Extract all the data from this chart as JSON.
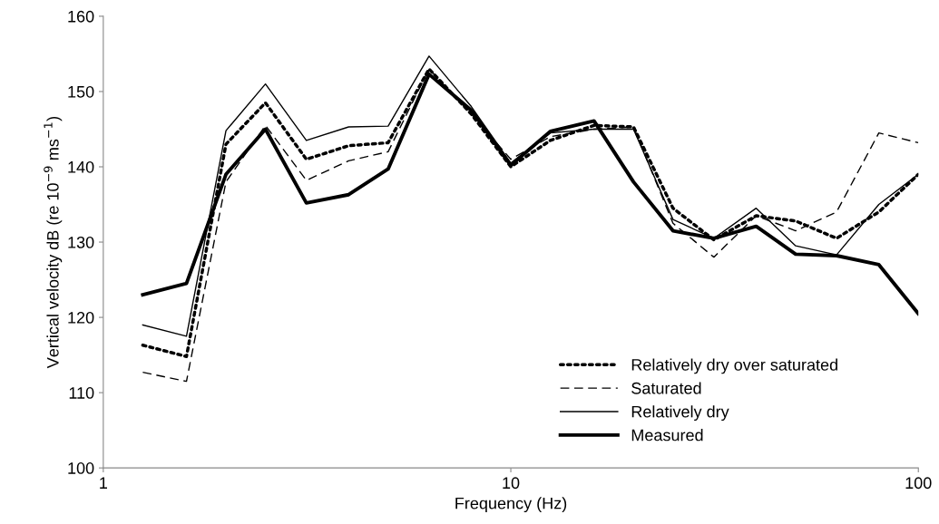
{
  "chart_data": {
    "type": "line",
    "xlabel": "Frequency (Hz)",
    "ylabel": "Vertical velocity dB (re 10$^{−9}$ ms$^{−1}$)",
    "log": "x",
    "xlim": [
      1,
      100
    ],
    "xticks": [
      1,
      10,
      100
    ],
    "ylim": [
      100,
      160
    ],
    "yticks": [
      100,
      110,
      120,
      130,
      140,
      150,
      160
    ],
    "grid": false,
    "legend": "bottom right",
    "marker": "none",
    "x": [
      1.25,
      1.6,
      2,
      2.5,
      3.15,
      4,
      5,
      6.3,
      8,
      10,
      12.5,
      16,
      20,
      25,
      31.5,
      40,
      50,
      63,
      80,
      100
    ],
    "series": [
      {
        "name": "Relatively dry over saturated",
        "color": "#000000",
        "line_style": "dotted",
        "values": [
          116.3,
          114.8,
          143,
          148.5,
          141,
          142.8,
          143.2,
          153,
          147,
          140,
          143.5,
          145.5,
          145.3,
          134.5,
          130.3,
          133.5,
          132.8,
          130.5,
          134,
          139
        ]
      },
      {
        "name": "Saturated",
        "color": "#000000",
        "line_style": "dashed",
        "values": [
          112.7,
          111.5,
          138,
          145.5,
          138.2,
          140.8,
          142,
          153,
          147,
          141,
          144,
          145,
          145.3,
          132.5,
          128,
          133.5,
          131.5,
          134,
          144.5,
          143.2
        ]
      },
      {
        "name": "Relatively dry",
        "color": "#000000",
        "line_style": "solid",
        "values": [
          119,
          117.5,
          144.8,
          151,
          143.5,
          145.3,
          145.4,
          154.7,
          148,
          140.5,
          144.5,
          145,
          145,
          133,
          130.5,
          134.5,
          129.5,
          128.3,
          135,
          139
        ]
      },
      {
        "name": "Measured",
        "color": "#000000",
        "line_style": "solid",
        "values": [
          123,
          124.5,
          139,
          145,
          135.2,
          136.3,
          139.7,
          152.3,
          147.5,
          140.2,
          144.7,
          146.1,
          138,
          131.5,
          130.5,
          132.1,
          128.4,
          128.2,
          127,
          120.5
        ]
      }
    ]
  }
}
